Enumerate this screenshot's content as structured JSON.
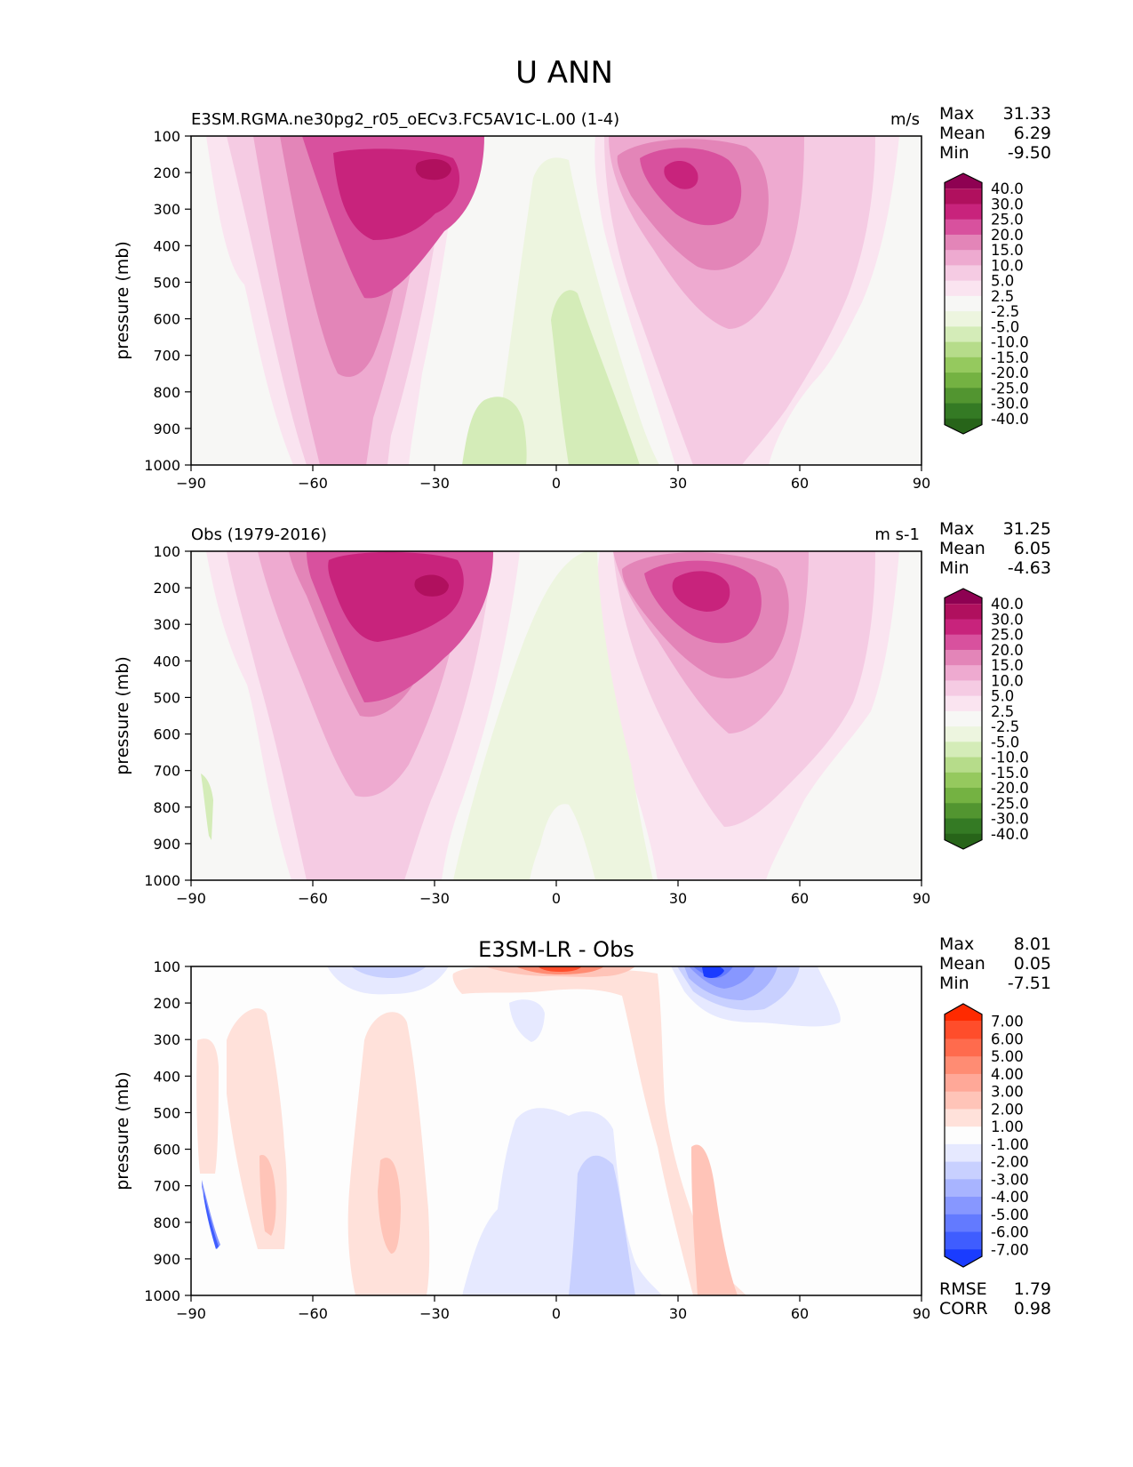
{
  "figure_title": "U ANN",
  "chart_data": [
    {
      "type": "contourf",
      "id": "model",
      "title": "E3SM.RGMA.ne30pg2_r05_oECv3.FC5AV1C-L.00 (1-4)",
      "units": "m/s",
      "ylabel": "pressure (mb)",
      "xlabel": "",
      "xlim": [
        -90,
        90
      ],
      "ylim": [
        1000,
        100
      ],
      "x_ticks": [
        "−90",
        "−60",
        "−30",
        "0",
        "30",
        "60",
        "90"
      ],
      "x_tick_values": [
        -90,
        -60,
        -30,
        0,
        30,
        60,
        90
      ],
      "y_ticks": [
        100,
        200,
        300,
        400,
        500,
        600,
        700,
        800,
        900,
        1000
      ],
      "stats": [
        {
          "label": "Max",
          "value": "31.33"
        },
        {
          "label": "Mean",
          "value": "6.29"
        },
        {
          "label": "Min",
          "value": "-9.50"
        }
      ],
      "colorbar": {
        "labels": [
          "40.0",
          "30.0",
          "25.0",
          "20.0",
          "15.0",
          "10.0",
          "5.0",
          "2.5",
          "-2.5",
          "-5.0",
          "-10.0",
          "-15.0",
          "-20.0",
          "-25.0",
          "-30.0",
          "-40.0"
        ],
        "colors": [
          "#8e0152",
          "#b0105e",
          "#c8237c",
          "#d8519e",
          "#e385b8",
          "#eeaad0",
          "#f5cbe3",
          "#fae4f0",
          "#f7f7f5",
          "#edf5df",
          "#d4ecb8",
          "#b6dc8a",
          "#95c95e",
          "#74b242",
          "#529530",
          "#347a24",
          "#276419"
        ]
      },
      "features": [
        {
          "name": "SH westerly jet",
          "lat": -38,
          "plev": 210,
          "value": 31
        },
        {
          "name": "NH westerly jet",
          "lat": 38,
          "plev": 220,
          "value": 29
        },
        {
          "name": "Tropical easterlies",
          "lat": 5,
          "plev": 700,
          "value": -9.5
        }
      ]
    },
    {
      "type": "contourf",
      "id": "obs",
      "title": "Obs (1979-2016)",
      "units": "m s-1",
      "ylabel": "pressure (mb)",
      "xlabel": "",
      "xlim": [
        -90,
        90
      ],
      "ylim": [
        1000,
        100
      ],
      "x_ticks": [
        "−90",
        "−60",
        "−30",
        "0",
        "30",
        "60",
        "90"
      ],
      "x_tick_values": [
        -90,
        -60,
        -30,
        0,
        30,
        60,
        90
      ],
      "y_ticks": [
        100,
        200,
        300,
        400,
        500,
        600,
        700,
        800,
        900,
        1000
      ],
      "stats": [
        {
          "label": "Max",
          "value": "31.25"
        },
        {
          "label": "Mean",
          "value": "6.05"
        },
        {
          "label": "Min",
          "value": "-4.63"
        }
      ],
      "colorbar": {
        "labels": [
          "40.0",
          "30.0",
          "25.0",
          "20.0",
          "15.0",
          "10.0",
          "5.0",
          "2.5",
          "-2.5",
          "-5.0",
          "-10.0",
          "-15.0",
          "-20.0",
          "-25.0",
          "-30.0",
          "-40.0"
        ],
        "colors": [
          "#8e0152",
          "#b0105e",
          "#c8237c",
          "#d8519e",
          "#e385b8",
          "#eeaad0",
          "#f5cbe3",
          "#fae4f0",
          "#f7f7f5",
          "#edf5df",
          "#d4ecb8",
          "#b6dc8a",
          "#95c95e",
          "#74b242",
          "#529530",
          "#347a24",
          "#276419"
        ]
      },
      "features": [
        {
          "name": "SH westerly jet",
          "lat": -35,
          "plev": 210,
          "value": 31
        },
        {
          "name": "NH westerly jet",
          "lat": 36,
          "plev": 200,
          "value": 28
        },
        {
          "name": "Tropical easterlies",
          "lat": -5,
          "plev": 800,
          "value": -4.6
        }
      ]
    },
    {
      "type": "contourf",
      "id": "diff",
      "title": "E3SM-LR - Obs",
      "units": "",
      "ylabel": "pressure (mb)",
      "xlabel": "",
      "xlim": [
        -90,
        90
      ],
      "ylim": [
        1000,
        100
      ],
      "x_ticks": [
        "−90",
        "−60",
        "−30",
        "0",
        "30",
        "60",
        "90"
      ],
      "x_tick_values": [
        -90,
        -60,
        -30,
        0,
        30,
        60,
        90
      ],
      "y_ticks": [
        100,
        200,
        300,
        400,
        500,
        600,
        700,
        800,
        900,
        1000
      ],
      "stats": [
        {
          "label": "Max",
          "value": "8.01"
        },
        {
          "label": "Mean",
          "value": "0.05"
        },
        {
          "label": "Min",
          "value": "-7.51"
        }
      ],
      "metrics": [
        {
          "label": "RMSE",
          "value": "1.79"
        },
        {
          "label": "CORR",
          "value": "0.98"
        }
      ],
      "colorbar": {
        "labels": [
          "7.00",
          "6.00",
          "5.00",
          "4.00",
          "3.00",
          "2.00",
          "1.00",
          "-1.00",
          "-2.00",
          "-3.00",
          "-4.00",
          "-5.00",
          "-6.00",
          "-7.00"
        ],
        "colors": [
          "#ff2a00",
          "#ff4d2b",
          "#ff6b4d",
          "#ff8c73",
          "#ffa898",
          "#ffc4b8",
          "#ffe1da",
          "#fdfdfd",
          "#e6e9ff",
          "#c8d0ff",
          "#a8b4ff",
          "#8797ff",
          "#637aff",
          "#3f5dff",
          "#1a3cff"
        ]
      },
      "features": [
        {
          "name": "Upper-level positive bias",
          "lat": 0,
          "plev": 100,
          "value": 8.0
        },
        {
          "name": "Upper-level negative bias",
          "lat": 38,
          "plev": 100,
          "value": -7.5
        },
        {
          "name": "Tropical negative bias",
          "lat": 5,
          "plev": 800,
          "value": -3
        }
      ]
    }
  ]
}
